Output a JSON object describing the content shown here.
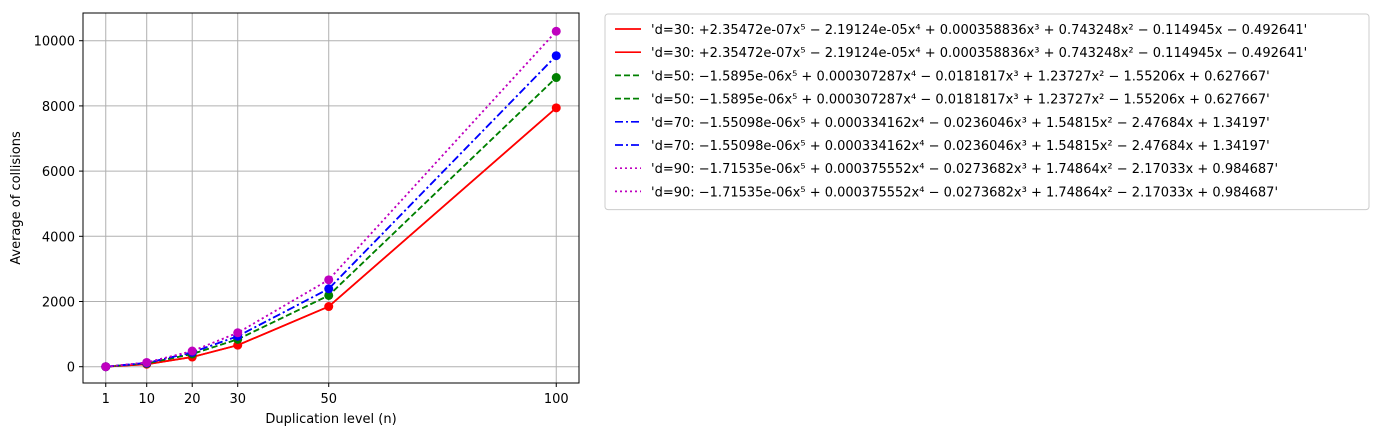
{
  "chart_data": {
    "type": "line",
    "xlabel": "Duplication level (n)",
    "ylabel": "Average of collisions",
    "x": [
      1,
      10,
      20,
      30,
      50,
      100
    ],
    "xticks": [
      1,
      10,
      20,
      30,
      50,
      100
    ],
    "xlim": [
      -4.0,
      105.0
    ],
    "yticks": [
      0,
      2000,
      4000,
      6000,
      8000,
      10000
    ],
    "ylim": [
      -500,
      10850
    ],
    "grid": true,
    "legend_position": "outside-right-top",
    "series": [
      {
        "legend": "'d=30: +2.35472e-07x⁵ − 2.19124e-05x⁴ + 0.000358836x³ + 0.743248x² − 0.114945x − 0.492641'",
        "color": "#ff0000",
        "dash": "solid",
        "markers": true,
        "values": [
          0,
          75,
          297,
          660,
          1845,
          7940
        ]
      },
      {
        "legend": "'d=30: +2.35472e-07x⁵ − 2.19124e-05x⁴ + 0.000358836x³ + 0.743248x² − 0.114945x − 0.492641'",
        "color": "#ff0000",
        "dash": "solid",
        "markers": false,
        "values": [
          0,
          75,
          297,
          660,
          1845,
          7940
        ]
      },
      {
        "legend": "'d=50: −1.5895e-06x⁵ + 0.000307287x⁴ − 0.0181817x³ + 1.23727x² − 1.55206x + 0.627667'",
        "color": "#008000",
        "dash": "dashed",
        "markers": true,
        "values": [
          0,
          100,
          390,
          840,
          2185,
          8870
        ]
      },
      {
        "legend": "'d=50: −1.5895e-06x⁵ + 0.000307287x⁴ − 0.0181817x³ + 1.23727x² − 1.55206x + 0.627667'",
        "color": "#008000",
        "dash": "dashed",
        "markers": false,
        "values": [
          0,
          100,
          390,
          840,
          2185,
          8870
        ]
      },
      {
        "legend": "'d=70: −1.55098e-06x⁵ + 0.000334162x⁴ − 0.0236046x³ + 1.54815x² − 2.47684x + 1.34197'",
        "color": "#0000ff",
        "dash": "dashdot",
        "markers": true,
        "values": [
          0,
          115,
          440,
          935,
          2390,
          9540
        ]
      },
      {
        "legend": "'d=70: −1.55098e-06x⁵ + 0.000334162x⁴ − 0.0236046x³ + 1.54815x² − 2.47684x + 1.34197'",
        "color": "#0000ff",
        "dash": "dashdot",
        "markers": false,
        "values": [
          0,
          115,
          440,
          935,
          2390,
          9540
        ]
      },
      {
        "legend": "'d=90: −1.71535e-06x⁵ + 0.000375552x⁴ − 0.0273682x³ + 1.74864x² − 2.17033x + 0.984687'",
        "color": "#bf00bf",
        "dash": "dotted",
        "markers": true,
        "values": [
          0,
          130,
          480,
          1040,
          2665,
          10290
        ]
      },
      {
        "legend": "'d=90: −1.71535e-06x⁵ + 0.000375552x⁴ − 0.0273682x³ + 1.74864x² − 2.17033x + 0.984687'",
        "color": "#bf00bf",
        "dash": "dotted",
        "markers": false,
        "values": [
          0,
          130,
          480,
          1040,
          2665,
          10290
        ]
      }
    ]
  }
}
